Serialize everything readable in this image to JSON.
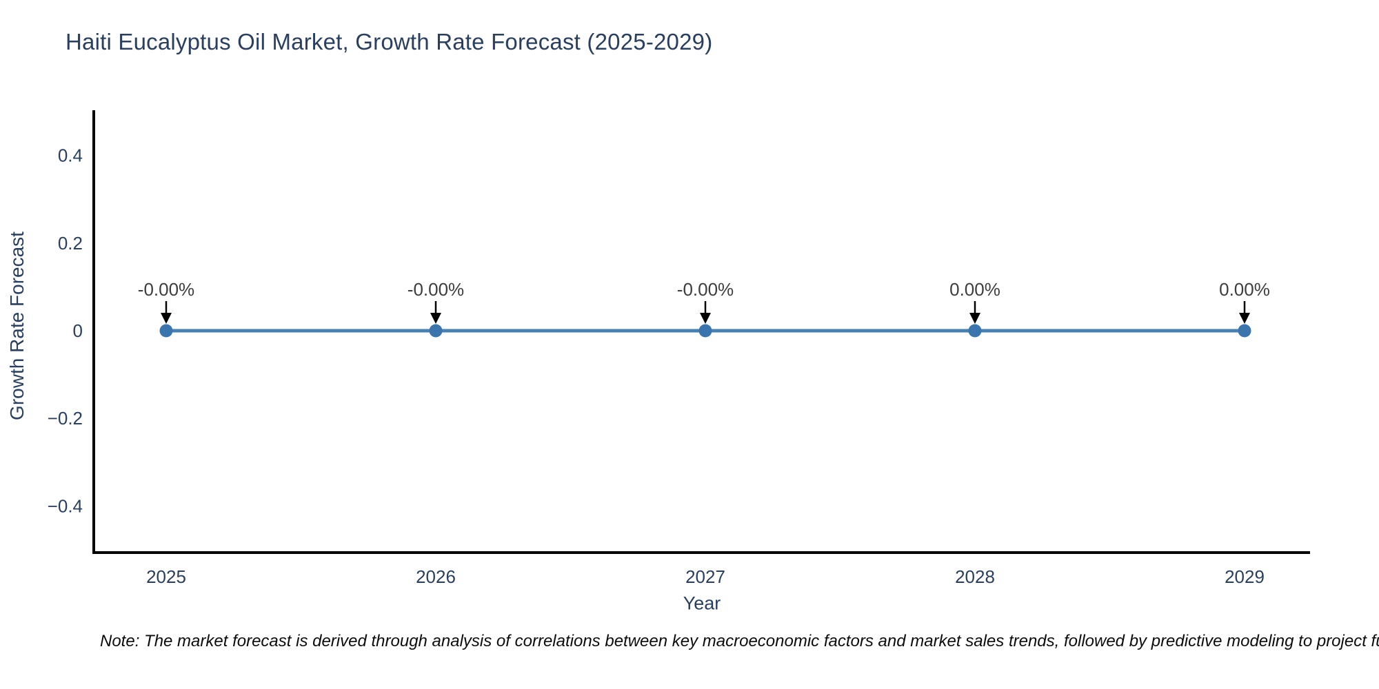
{
  "title": "Haiti Eucalyptus Oil Market, Growth Rate Forecast (2025-2029)",
  "note": "Note: The market forecast is derived through analysis of correlations between key macroeconomic factors and market sales trends, followed by predictive modeling to project future sales",
  "chart_data": {
    "type": "line",
    "x": [
      2025,
      2026,
      2027,
      2028,
      2029
    ],
    "categories": [
      "2025",
      "2026",
      "2027",
      "2028",
      "2029"
    ],
    "values": [
      0,
      0,
      0,
      0,
      0
    ],
    "point_labels": [
      "-0.00%",
      "-0.00%",
      "-0.00%",
      "0.00%",
      "0.00%"
    ],
    "title": "Haiti Eucalyptus Oil Market, Growth Rate Forecast (2025-2029)",
    "xlabel": "Year",
    "ylabel": "Growth Rate Forecast",
    "ylim": [
      -0.5,
      0.5
    ],
    "yticks": [
      {
        "value": 0.4,
        "label": "0.4"
      },
      {
        "value": 0.2,
        "label": "0.2"
      },
      {
        "value": 0,
        "label": "0"
      },
      {
        "value": -0.2,
        "label": "−0.2"
      },
      {
        "value": -0.4,
        "label": "−0.4"
      }
    ],
    "grid": false,
    "legend": "none",
    "colors": {
      "line": "#4781b4",
      "marker": "#3a76ad",
      "arrow": "#000000",
      "axis": "#000000",
      "tick_text": "#2a3f5f",
      "annotation_text": "#3d3d3d"
    }
  }
}
